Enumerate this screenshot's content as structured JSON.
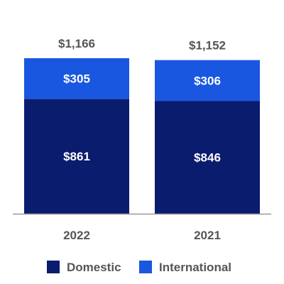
{
  "chart_data": {
    "type": "bar",
    "stacked": true,
    "categories": [
      "2022",
      "2021"
    ],
    "series": [
      {
        "name": "Domestic",
        "values": [
          861,
          846
        ],
        "labels": [
          "$861",
          "$846"
        ],
        "color": "#0a1c6e"
      },
      {
        "name": "International",
        "values": [
          305,
          306
        ],
        "labels": [
          "$305",
          "$306"
        ],
        "color": "#1a57e0"
      }
    ],
    "totals": [
      1166,
      1152
    ],
    "total_labels": [
      "$1,166",
      "$1,152"
    ],
    "ylim": [
      0,
      1166
    ],
    "grid": false,
    "legend": "bottom",
    "axis_color": "#999999",
    "label_color": "#555555",
    "title": "",
    "xlabel": "",
    "ylabel": ""
  }
}
